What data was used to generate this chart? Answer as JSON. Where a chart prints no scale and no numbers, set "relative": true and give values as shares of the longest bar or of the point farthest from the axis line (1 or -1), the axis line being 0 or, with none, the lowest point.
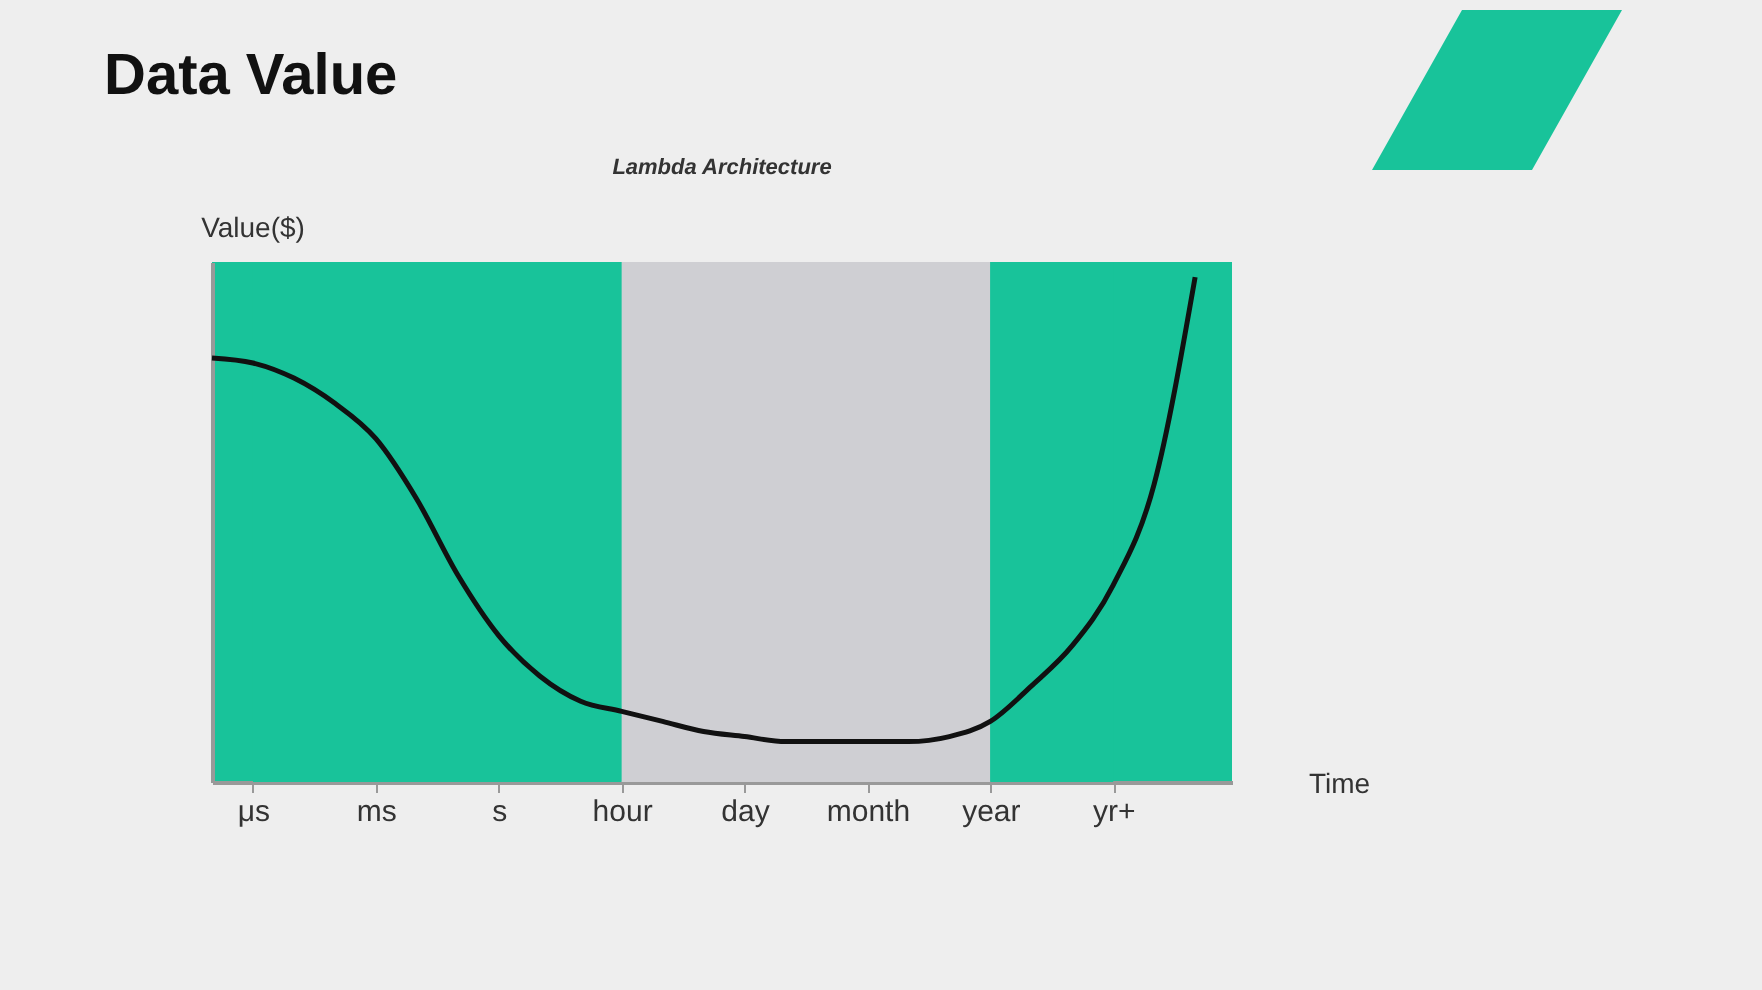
{
  "chart_data": {
    "type": "line",
    "title": "Data Value",
    "subtitle": "Lambda Architecture",
    "xlabel": "Time",
    "ylabel": "Value($)",
    "relative": true,
    "categories": [
      null,
      "μs",
      null,
      null,
      "ms",
      null,
      null,
      "s",
      null,
      null,
      "hour",
      null,
      null,
      "day",
      null,
      null,
      "month",
      null,
      null,
      "year",
      null,
      null,
      "yr+",
      null,
      null
    ],
    "bands": [
      {
        "axis": "x",
        "from": "μs",
        "to": "hour",
        "color": "#18c39a"
      },
      {
        "axis": "x",
        "from": "hour",
        "to": "year",
        "color": "#cfcfd3"
      },
      {
        "axis": "x",
        "from": "year",
        "to": "yr+",
        "color": "#18c39a"
      }
    ],
    "series": [
      {
        "color": "#111111",
        "values": [
          0.84,
          0.83,
          0.8,
          0.75,
          0.68,
          0.56,
          0.41,
          0.29,
          0.21,
          0.16,
          0.14,
          0.12,
          0.1,
          0.09,
          0.08,
          0.08,
          0.08,
          0.08,
          0.09,
          0.12,
          0.19,
          0.27,
          0.39,
          0.59,
          1
        ]
      }
    ]
  }
}
